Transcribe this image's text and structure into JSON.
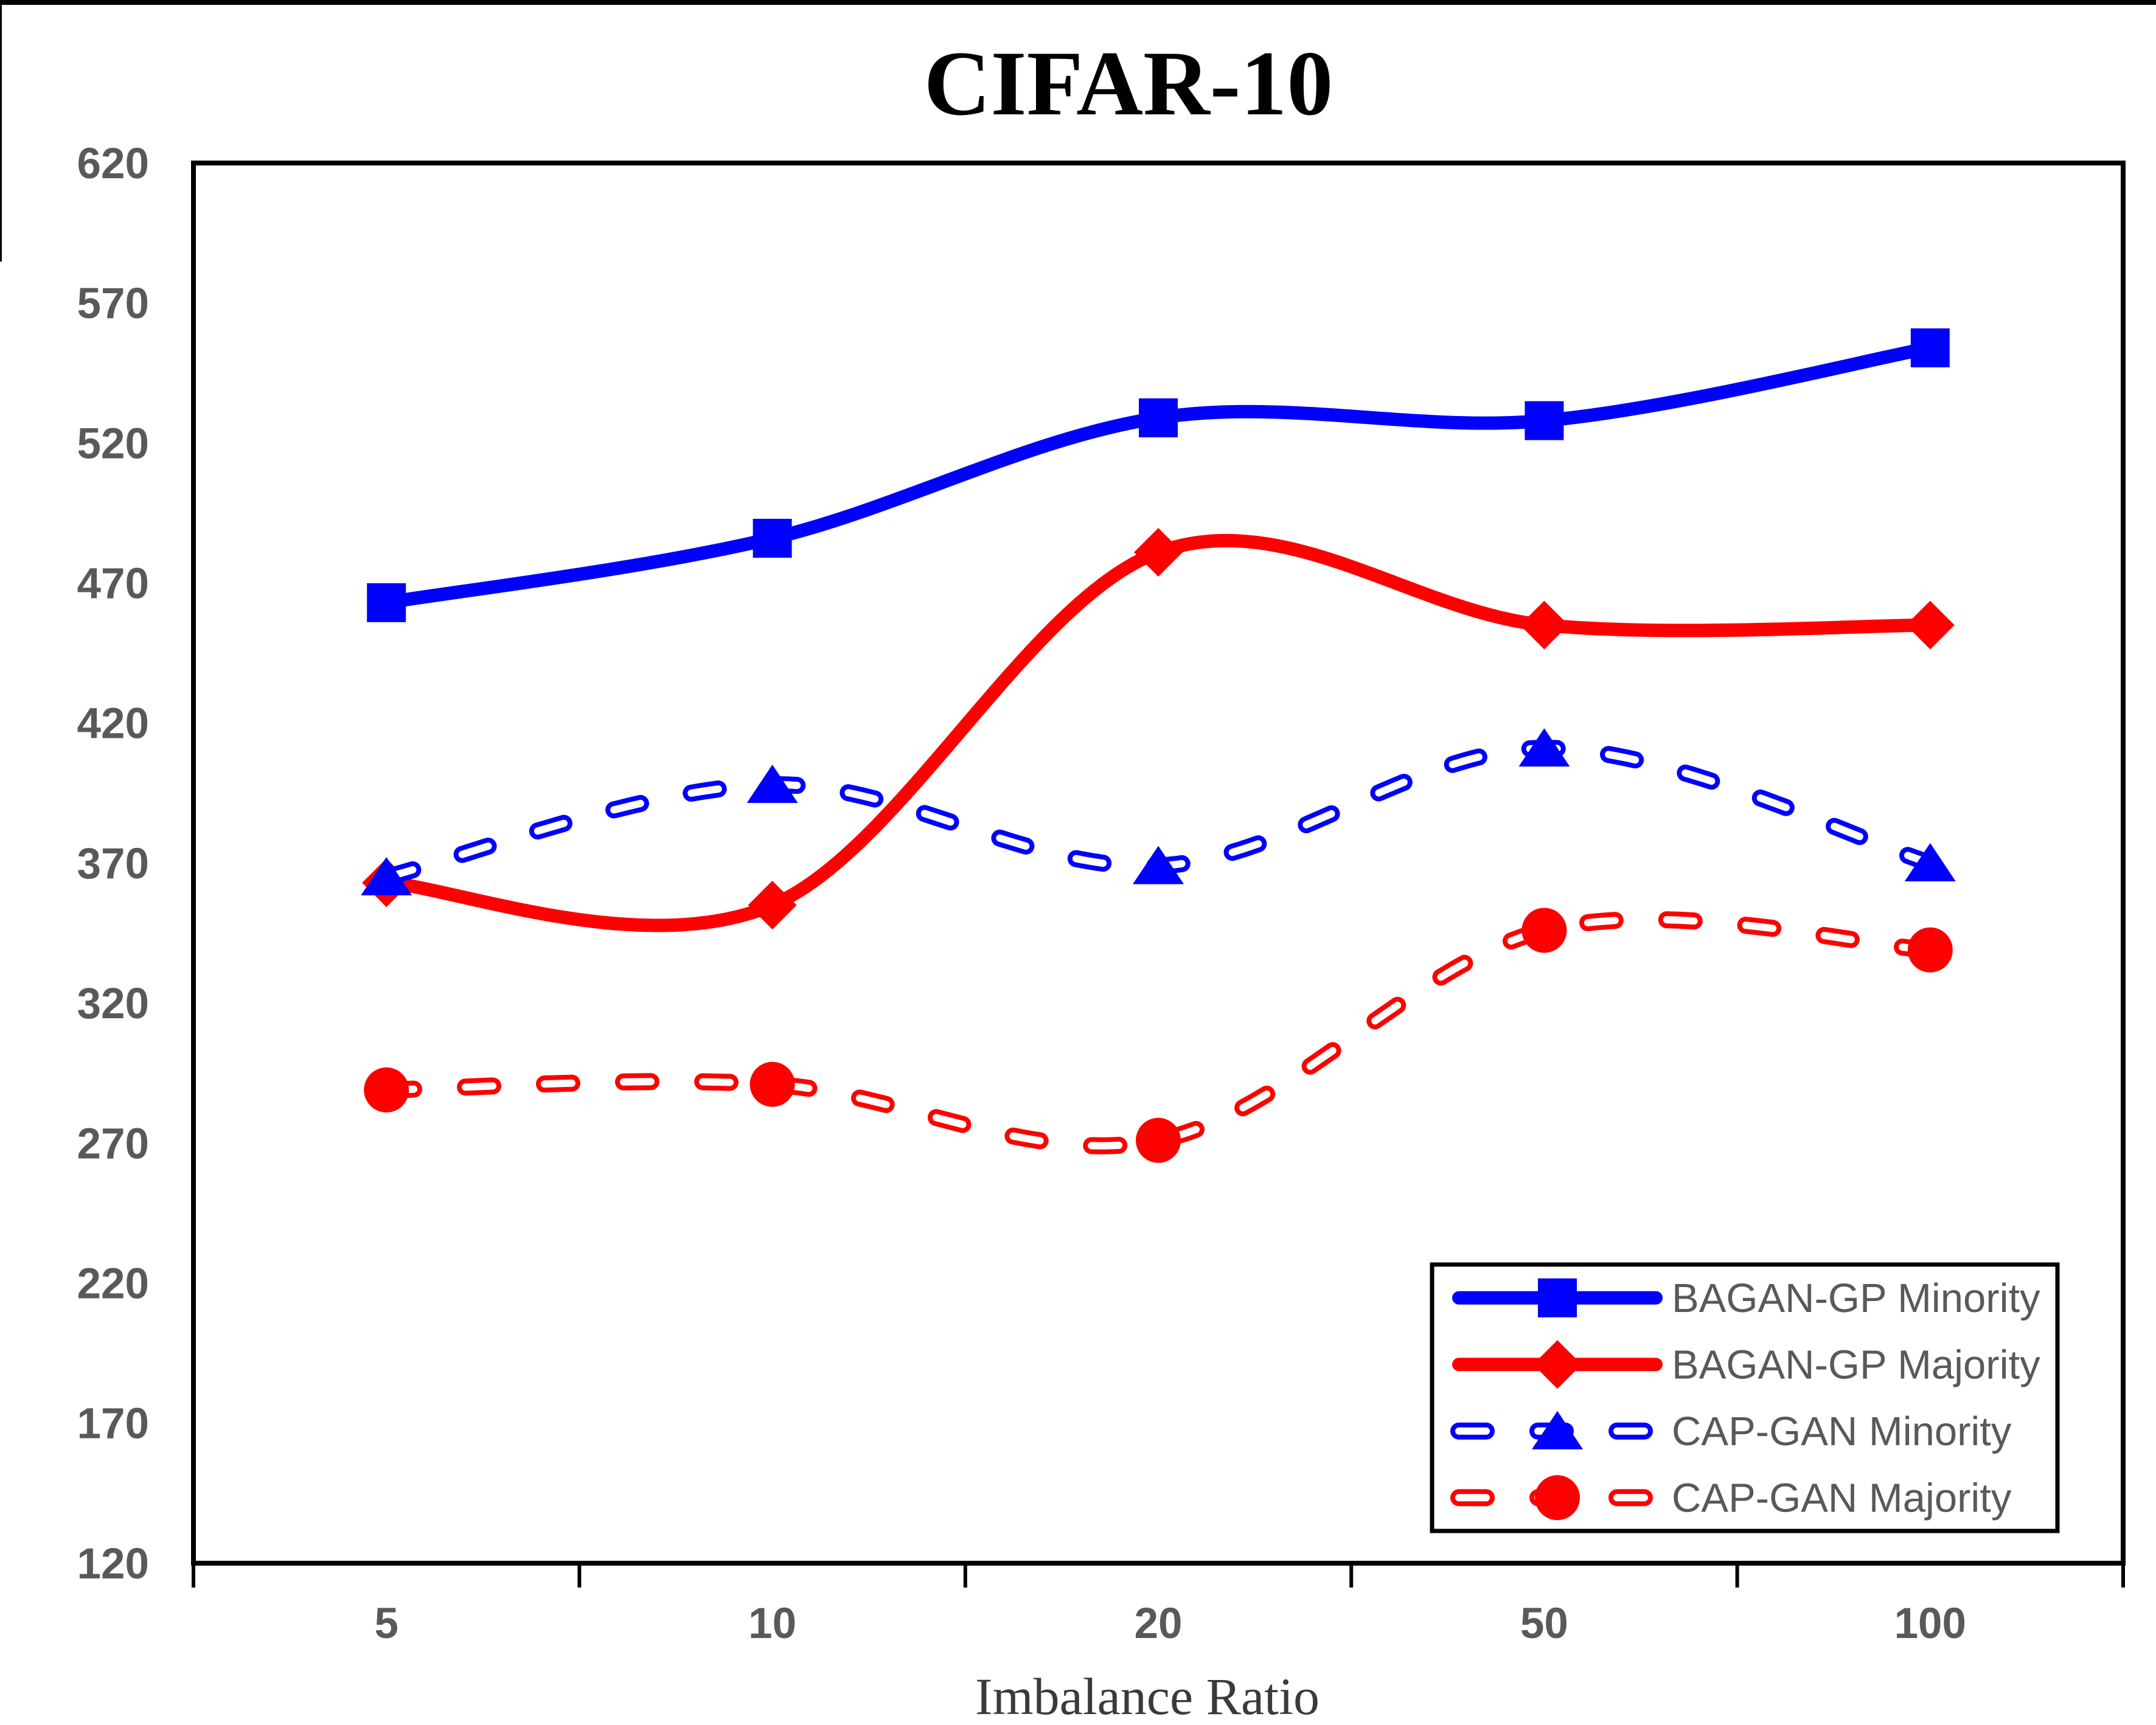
{
  "chart_data": {
    "type": "line",
    "title": "CIFAR-10",
    "xlabel": "Imbalance Ratio",
    "ylabel": "",
    "categories": [
      "5",
      "10",
      "20",
      "50",
      "100"
    ],
    "y_ticks": [
      120,
      170,
      220,
      270,
      320,
      370,
      420,
      470,
      520,
      570,
      620
    ],
    "ylim": [
      120,
      620
    ],
    "grid": false,
    "legend_position": "inside-bottom-right",
    "series": [
      {
        "name": "BAGAN-GP Minority",
        "color": "#0000FF",
        "line_style": "solid",
        "marker": "square",
        "values": [
          463,
          486,
          529,
          528,
          554
        ]
      },
      {
        "name": "BAGAN-GP Majority",
        "color": "#FF0000",
        "line_style": "solid",
        "marker": "diamond",
        "values": [
          363,
          355,
          481,
          455,
          455
        ]
      },
      {
        "name": "CAP-GAN Minority",
        "color": "#0000FF",
        "line_style": "dashed",
        "marker": "triangle",
        "values": [
          365,
          398,
          369,
          411,
          370
        ]
      },
      {
        "name": "CAP-GAN Majority",
        "color": "#FF0000",
        "line_style": "dashed",
        "marker": "circle",
        "values": [
          289,
          291,
          271,
          346,
          339
        ]
      }
    ],
    "colors": {
      "axis": "#000000",
      "tick_label": "#595959",
      "legend_text": "#595959",
      "title": "#000000",
      "background": "#ffffff"
    }
  }
}
